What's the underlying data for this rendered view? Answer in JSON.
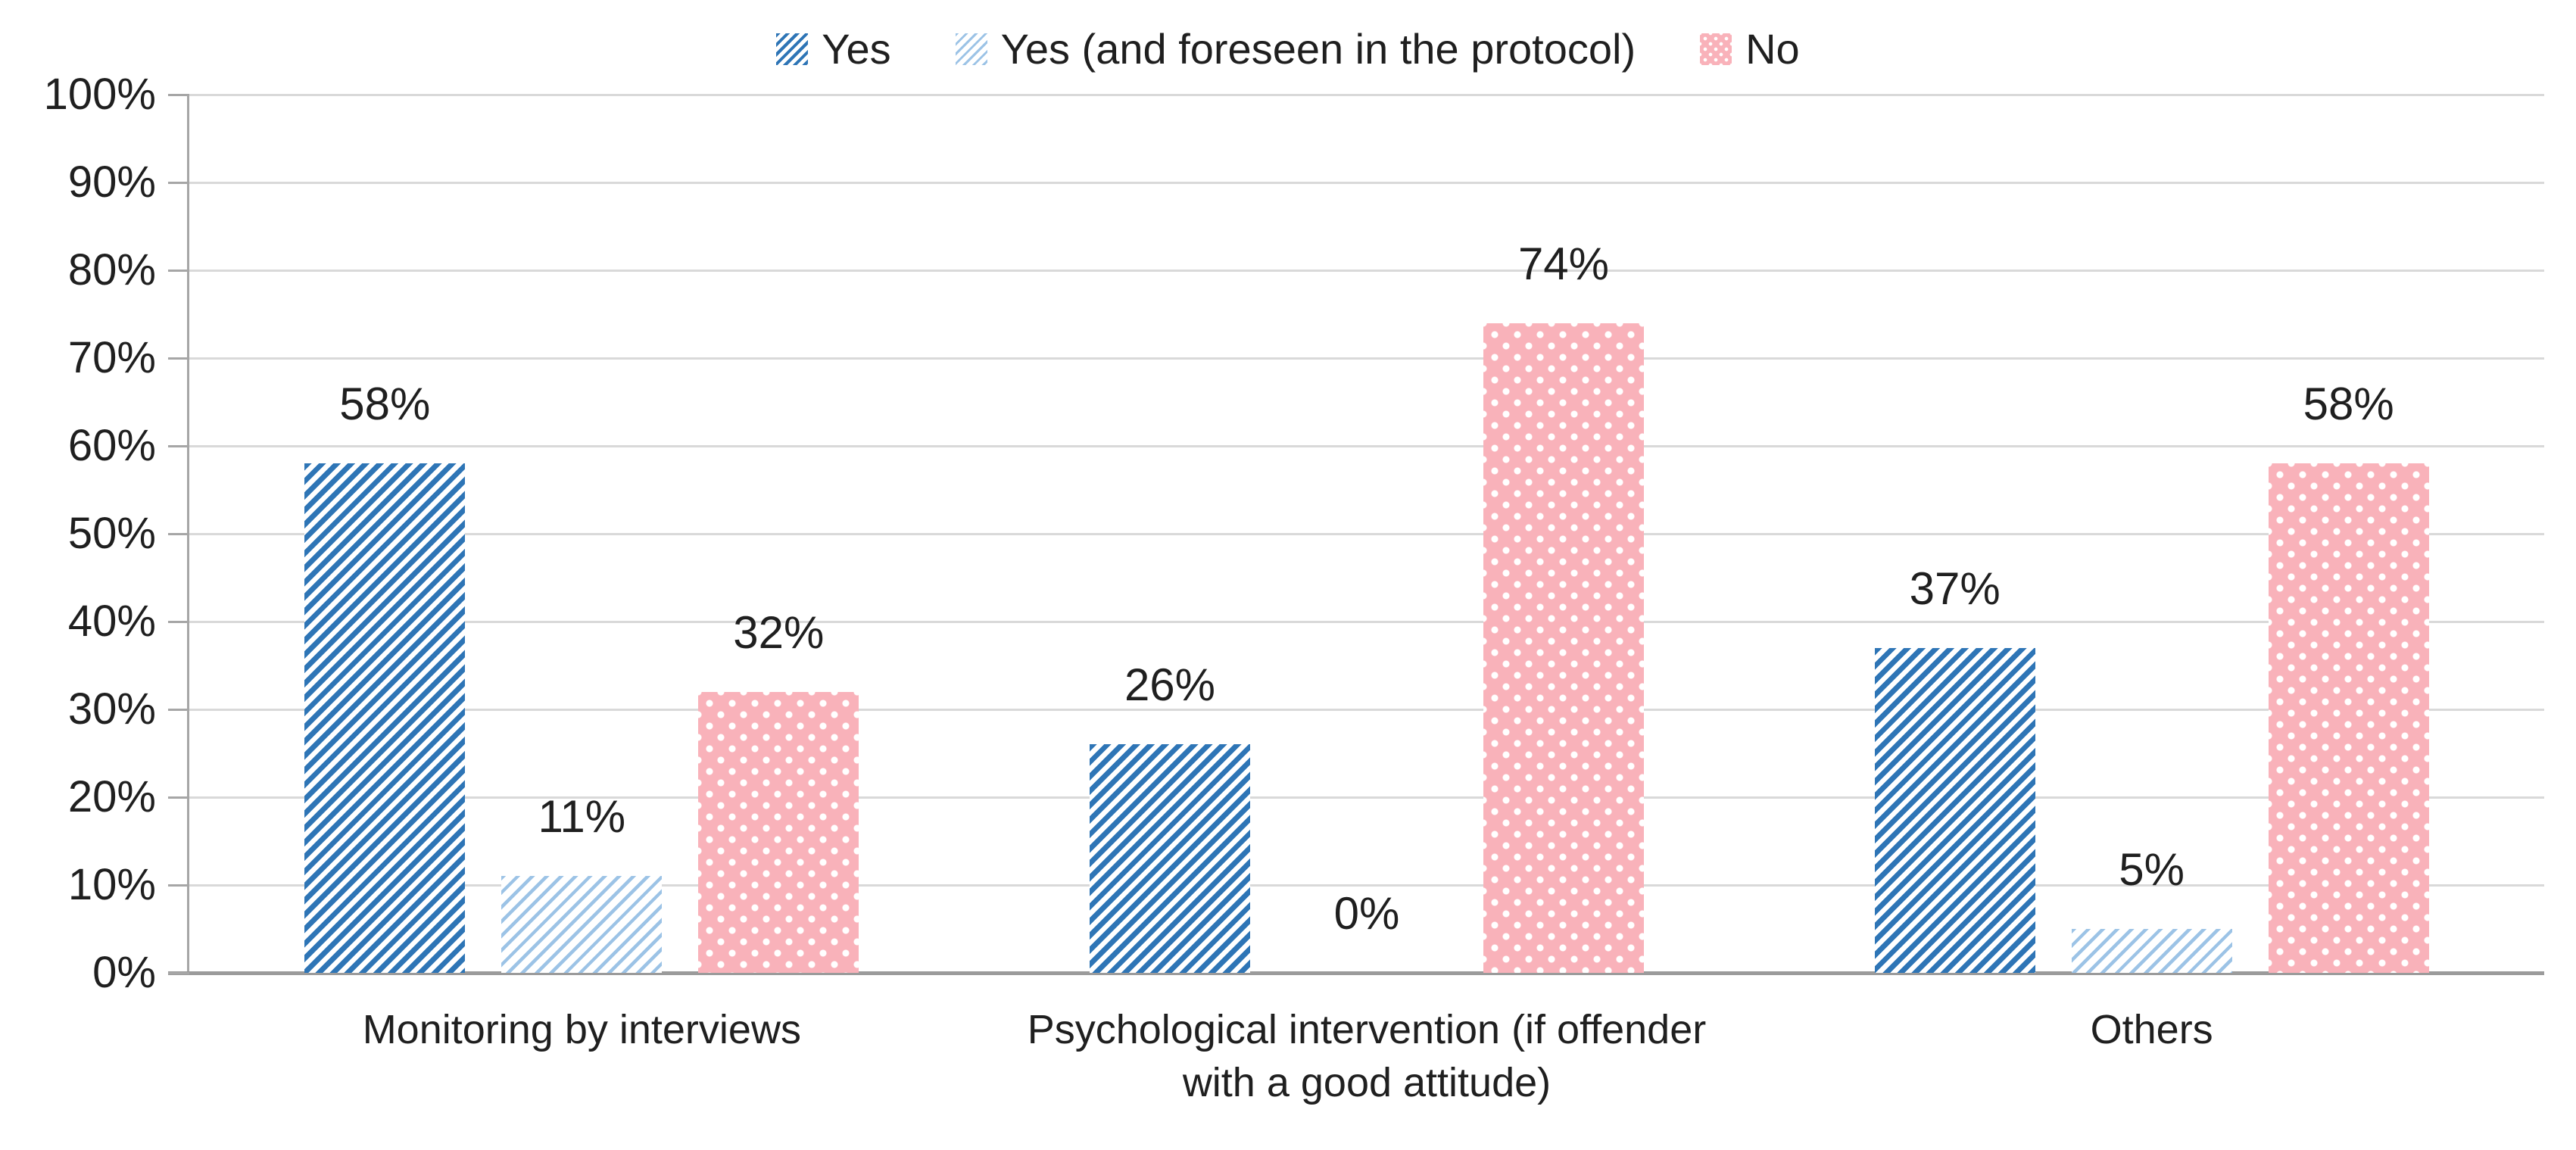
{
  "chart_data": {
    "type": "bar",
    "title": "",
    "categories": [
      "Monitoring by interviews",
      "Psychological intervention (if offender\nwith a good attitude)",
      "Others"
    ],
    "series": [
      {
        "name": "Yes",
        "pattern": "blue-diagonal-stripes",
        "color": "#2E75B6",
        "values": [
          58,
          26,
          37
        ],
        "labels": [
          "58%",
          "26%",
          "37%"
        ]
      },
      {
        "name": "Yes (and foreseen in the protocol)",
        "pattern": "light-blue-diagonal-stripes",
        "color": "#9CC3E6",
        "values": [
          11,
          0,
          5
        ],
        "labels": [
          "11%",
          "0%",
          "5%"
        ]
      },
      {
        "name": "No",
        "pattern": "pink-white-dots",
        "color": "#F9B2BA",
        "values": [
          32,
          74,
          58
        ],
        "labels": [
          "32%",
          "74%",
          "58%"
        ]
      }
    ],
    "y_axis": {
      "min": 0,
      "max": 100,
      "step": 10,
      "tick_labels": [
        "0%",
        "10%",
        "20%",
        "30%",
        "40%",
        "50%",
        "60%",
        "70%",
        "80%",
        "90%",
        "100%"
      ]
    },
    "legend_position": "top",
    "gridlines": true,
    "style_colors": {
      "gridline": "#D9D9D9",
      "axis": "#A6A6A6",
      "baseline": "#9B9B9B",
      "text": "#1F1F1F",
      "background": "#FFFFFF"
    }
  }
}
